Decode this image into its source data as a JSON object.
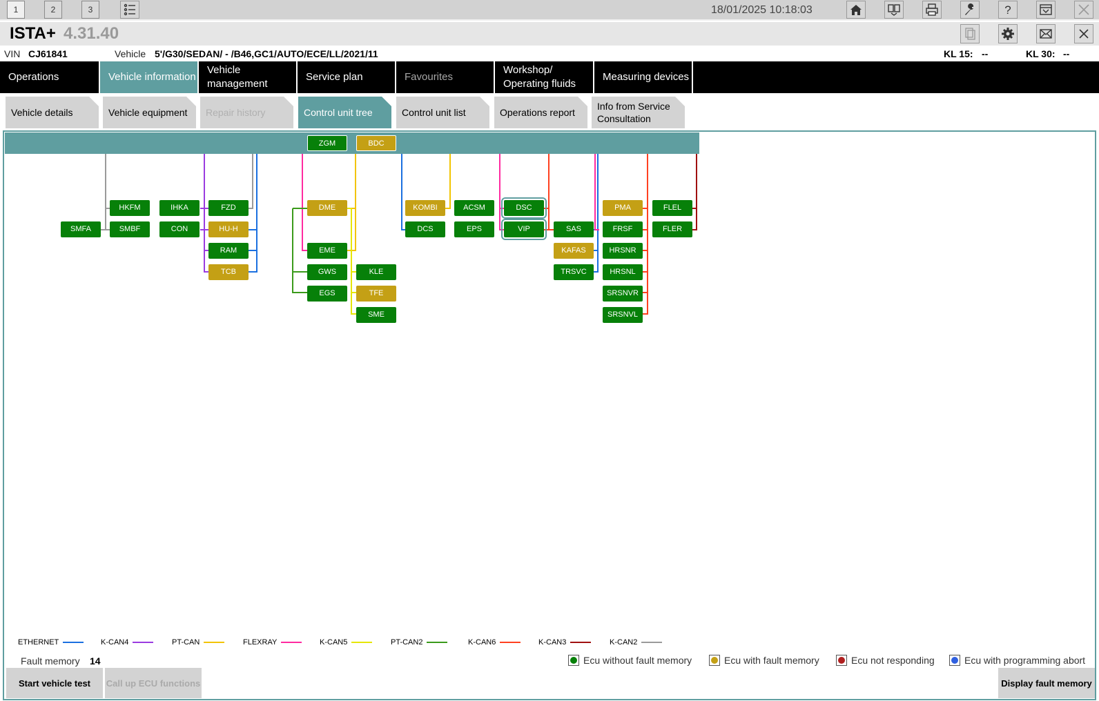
{
  "workspace": {
    "buttons": [
      "1",
      "2",
      "3"
    ]
  },
  "datetime": "18/01/2025 10:18:03",
  "app": {
    "name": "ISTA+",
    "version": "4.31.40"
  },
  "vehicle_row": {
    "vin_label": "VIN",
    "vin": "CJ61841",
    "vehicle_label": "Vehicle",
    "vehicle": "5'/G30/SEDAN/ - /B46,GC1/AUTO/ECE/LL/2021/11",
    "kl15_label": "KL 15:",
    "kl15": "--",
    "kl30_label": "KL 30:",
    "kl30": "--"
  },
  "main_nav": [
    "Operations",
    "Vehicle information",
    "Vehicle management",
    "Service plan",
    "Favourites",
    "Workshop/ Operating fluids",
    "Measuring devices"
  ],
  "sub_tabs": [
    "Vehicle details",
    "Vehicle equipment",
    "Repair history",
    "Control unit tree",
    "Control unit list",
    "Operations report",
    "Info from Service Consultation"
  ],
  "ecus": {
    "bus": [
      {
        "name": "ZGM",
        "status": "ok"
      },
      {
        "name": "BDC",
        "status": "fault"
      }
    ],
    "units": [
      {
        "name": "HKFM",
        "status": "ok"
      },
      {
        "name": "IHKA",
        "status": "ok"
      },
      {
        "name": "FZD",
        "status": "ok"
      },
      {
        "name": "SMFA",
        "status": "ok"
      },
      {
        "name": "SMBF",
        "status": "ok"
      },
      {
        "name": "CON",
        "status": "ok"
      },
      {
        "name": "HU-H",
        "status": "fault"
      },
      {
        "name": "RAM",
        "status": "ok"
      },
      {
        "name": "TCB",
        "status": "fault"
      },
      {
        "name": "DME",
        "status": "fault"
      },
      {
        "name": "EME",
        "status": "ok"
      },
      {
        "name": "GWS",
        "status": "ok"
      },
      {
        "name": "KLE",
        "status": "ok"
      },
      {
        "name": "EGS",
        "status": "ok"
      },
      {
        "name": "TFE",
        "status": "fault"
      },
      {
        "name": "SME",
        "status": "ok"
      },
      {
        "name": "KOMBI",
        "status": "fault"
      },
      {
        "name": "ACSM",
        "status": "ok"
      },
      {
        "name": "DSC",
        "status": "ok"
      },
      {
        "name": "DCS",
        "status": "ok"
      },
      {
        "name": "EPS",
        "status": "ok"
      },
      {
        "name": "VIP",
        "status": "ok"
      },
      {
        "name": "SAS",
        "status": "ok"
      },
      {
        "name": "KAFAS",
        "status": "fault"
      },
      {
        "name": "TRSVC",
        "status": "ok"
      },
      {
        "name": "PMA",
        "status": "fault"
      },
      {
        "name": "FLEL",
        "status": "ok"
      },
      {
        "name": "FRSF",
        "status": "ok"
      },
      {
        "name": "FLER",
        "status": "ok"
      },
      {
        "name": "HRSNR",
        "status": "ok"
      },
      {
        "name": "HRSNL",
        "status": "ok"
      },
      {
        "name": "SRSNVR",
        "status": "ok"
      },
      {
        "name": "SRSNVL",
        "status": "ok"
      }
    ]
  },
  "bus_legend": [
    {
      "label": "ETHERNET",
      "color": "#1a6fe0"
    },
    {
      "label": "K-CAN4",
      "color": "#9a3be0"
    },
    {
      "label": "PT-CAN",
      "color": "#f2c400"
    },
    {
      "label": "FLEXRAY",
      "color": "#ff2aa0"
    },
    {
      "label": "K-CAN5",
      "color": "#e6e600"
    },
    {
      "label": "PT-CAN2",
      "color": "#3a9a1a"
    },
    {
      "label": "K-CAN6",
      "color": "#ff4020"
    },
    {
      "label": "K-CAN3",
      "color": "#a01010"
    },
    {
      "label": "K-CAN2",
      "color": "#9a9a9a"
    }
  ],
  "fault_memory": {
    "label": "Fault memory",
    "value": "14"
  },
  "status_legend": [
    {
      "label": "Ecu without fault memory",
      "color": "#078009"
    },
    {
      "label": "Ecu with fault memory",
      "color": "#c4a015"
    },
    {
      "label": "Ecu not responding",
      "color": "#b02020"
    },
    {
      "label": "Ecu with programming abort",
      "color": "#3060e0"
    }
  ],
  "buttons": {
    "start_test": "Start vehicle test",
    "call_up": "Call up ECU functions",
    "display_fault": "Display fault memory"
  }
}
